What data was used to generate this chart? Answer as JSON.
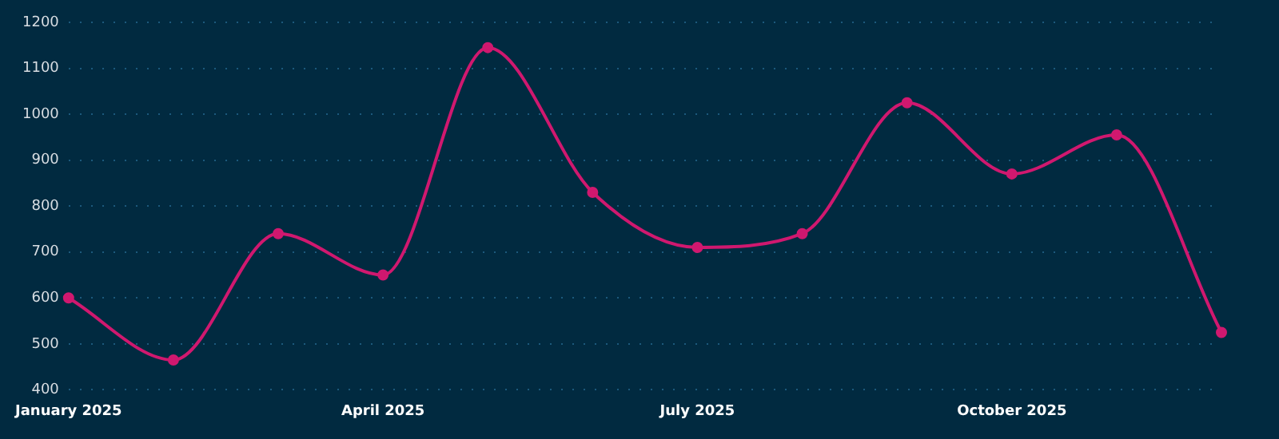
{
  "chart_data": {
    "type": "line",
    "categories": [
      "January 2025",
      null,
      null,
      "April 2025",
      null,
      null,
      "July 2025",
      null,
      null,
      "October 2025",
      null,
      null
    ],
    "series": [
      {
        "color": "#d0186f",
        "values": [
          600,
          465,
          740,
          650,
          1145,
          830,
          710,
          740,
          1025,
          870,
          955,
          525
        ]
      }
    ],
    "ylim": [
      400,
      1200
    ],
    "yticks": [
      400,
      500,
      600,
      700,
      800,
      900,
      1000,
      1100,
      1200
    ],
    "grid": "y",
    "legend": false,
    "marker": "circle",
    "line_style": "solid"
  }
}
